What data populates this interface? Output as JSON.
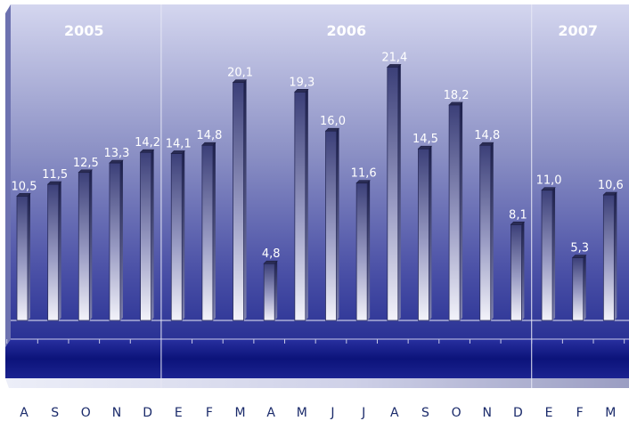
{
  "chart_data": {
    "type": "bar",
    "title": "",
    "xlabel": "",
    "ylabel": "",
    "ylim": [
      0,
      24
    ],
    "grid": false,
    "legend": "none",
    "categories": [
      "A",
      "S",
      "O",
      "N",
      "D",
      "E",
      "F",
      "M",
      "A",
      "M",
      "J",
      "J",
      "A",
      "S",
      "O",
      "N",
      "D",
      "E",
      "F",
      "M"
    ],
    "values": [
      10.5,
      11.5,
      12.5,
      13.3,
      14.2,
      14.1,
      14.8,
      20.1,
      4.8,
      19.3,
      16.0,
      11.6,
      21.4,
      14.5,
      18.2,
      14.8,
      8.1,
      11.0,
      5.3,
      10.6
    ],
    "value_labels": [
      "10,5",
      "11,5",
      "12,5",
      "13,3",
      "14,2",
      "14,1",
      "14,8",
      "20,1",
      "4,8",
      "19,3",
      "16,0",
      "11,6",
      "21,4",
      "14,5",
      "18,2",
      "14,8",
      "8,1",
      "11,0",
      "5,3",
      "10,6"
    ],
    "groups": [
      {
        "label": "2005",
        "start": 0,
        "end": 4
      },
      {
        "label": "2006",
        "start": 5,
        "end": 16
      },
      {
        "label": "2007",
        "start": 17,
        "end": 19
      }
    ],
    "colors": {
      "background_top": "#c9cbe8",
      "background_bottom": "#171f8a",
      "floor": "#0d1478",
      "bar_dark": "#3a3f7a",
      "bar_light": "#f2f2f8",
      "label_text": "#ffffff",
      "axis_text": "#1a2a6a"
    }
  }
}
